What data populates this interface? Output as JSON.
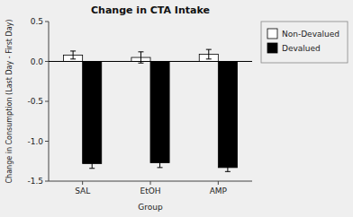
{
  "chart_data": {
    "type": "bar",
    "title": "Change in CTA Intake",
    "xlabel": "Group",
    "ylabel": "Change in Consumption (Last Day - First Day)",
    "categories": [
      "SAL",
      "EtOH",
      "AMP"
    ],
    "series": [
      {
        "name": "Non-Devalued",
        "color": "#ffffff",
        "values": [
          0.08,
          0.05,
          0.09
        ],
        "errors": [
          0.05,
          0.07,
          0.06
        ]
      },
      {
        "name": "Devalued",
        "color": "#000000",
        "values": [
          -1.28,
          -1.27,
          -1.33
        ],
        "errors": [
          0.06,
          0.06,
          0.05
        ]
      }
    ],
    "ylim": [
      -1.5,
      0.5
    ],
    "yticks": [
      -1.5,
      {
        "value": -1.0,
        "label": "-1.0"
      },
      -0.5,
      {
        "value": 0.0,
        "label": "0.0"
      },
      0.5
    ],
    "grid": false,
    "legend": "right"
  }
}
